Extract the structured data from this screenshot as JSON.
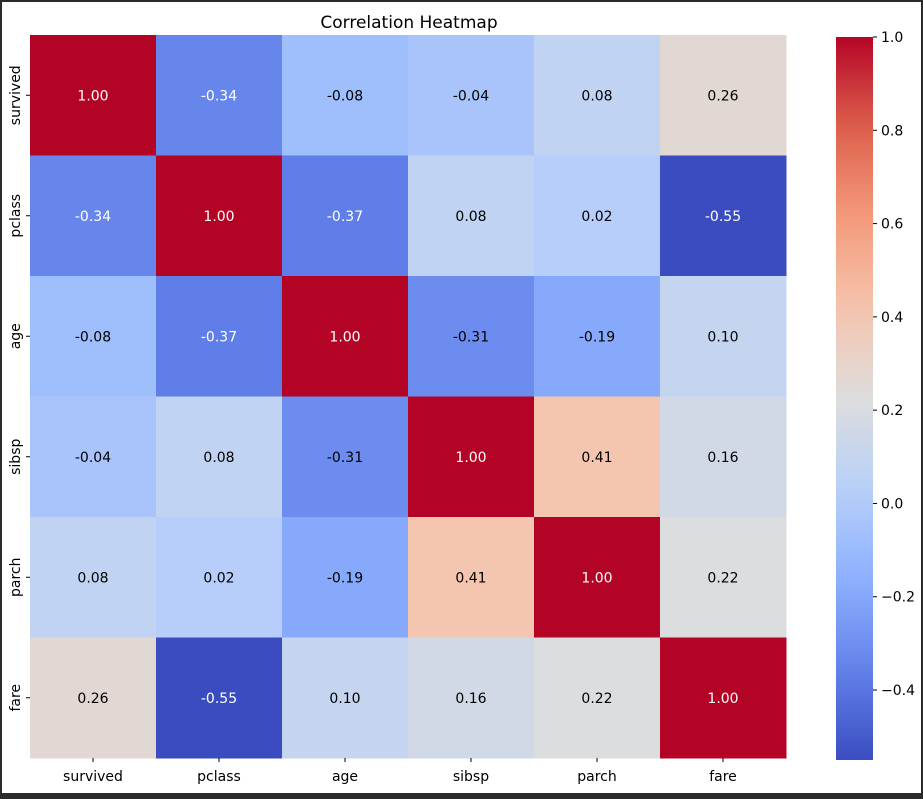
{
  "chart_data": {
    "type": "heatmap",
    "title": "Correlation Heatmap",
    "xlabel": "",
    "ylabel": "",
    "x_categories": [
      "survived",
      "pclass",
      "age",
      "sibsp",
      "parch",
      "fare"
    ],
    "y_categories": [
      "survived",
      "pclass",
      "age",
      "sibsp",
      "parch",
      "fare"
    ],
    "values": [
      [
        1.0,
        -0.34,
        -0.08,
        -0.04,
        0.08,
        0.26
      ],
      [
        -0.34,
        1.0,
        -0.37,
        0.08,
        0.02,
        -0.55
      ],
      [
        -0.08,
        -0.37,
        1.0,
        -0.31,
        -0.19,
        0.1
      ],
      [
        -0.04,
        0.08,
        -0.31,
        1.0,
        0.41,
        0.16
      ],
      [
        0.08,
        0.02,
        -0.19,
        0.41,
        1.0,
        0.22
      ],
      [
        0.26,
        -0.55,
        0.1,
        0.16,
        0.22,
        1.0
      ]
    ],
    "annotation_format": "0.00",
    "colormap": "coolwarm",
    "colorbar": {
      "vmin": -0.55,
      "vmax": 1.0,
      "ticks": [
        -0.4,
        -0.2,
        0.0,
        0.2,
        0.4,
        0.6,
        0.8,
        1.0
      ],
      "tick_labels": [
        "−0.4",
        "−0.2",
        "0.0",
        "0.2",
        "0.4",
        "0.6",
        "0.8",
        "1.0"
      ]
    },
    "grid": false,
    "legend": "colorbar-right"
  }
}
